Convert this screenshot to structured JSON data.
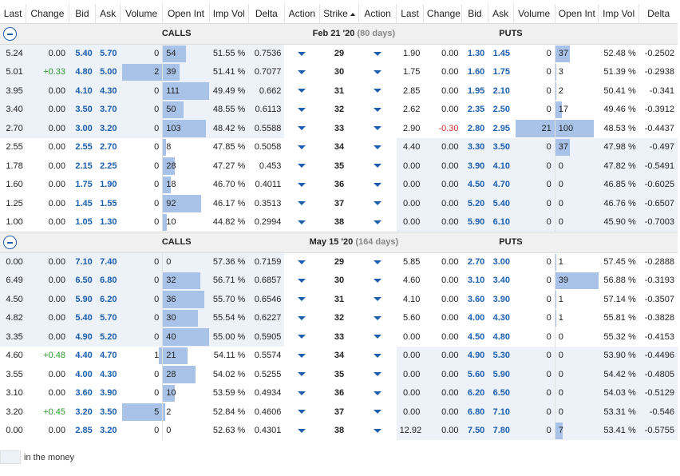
{
  "headers": {
    "last": "Last",
    "change": "Change",
    "bid": "Bid",
    "ask": "Ask",
    "volume": "Volume",
    "open_int": "Open Int",
    "imp_vol": "Imp Vol",
    "delta": "Delta",
    "action": "Action",
    "strike": "Strike",
    "action2": "Action",
    "last2": "Last",
    "change2": "Change",
    "bid2": "Bid",
    "ask2": "Ask",
    "volume2": "Volume",
    "open_int2": "Open Int",
    "imp_vol2": "Imp Vol",
    "delta2": "Delta"
  },
  "legend_label": "in the money",
  "sections": [
    {
      "calls_label": "CALLS",
      "date": "Feb 21 '20",
      "days": "(80 days)",
      "puts_label": "PUTS",
      "rows": [
        {
          "strike": "29",
          "call": {
            "last": "5.24",
            "change": "0.00",
            "bid": "5.40",
            "ask": "5.70",
            "volume": "0",
            "oi": "54",
            "iv": "51.55 %",
            "delta": "0.7536",
            "vol_frac": 0,
            "oi_frac": 0.49,
            "itm": true
          },
          "put": {
            "last": "1.90",
            "change": "0.00",
            "bid": "1.30",
            "ask": "1.45",
            "volume": "0",
            "oi": "37",
            "iv": "52.48 %",
            "delta": "-0.2502",
            "vol_frac": 0,
            "oi_frac": 0.33,
            "itm": false
          }
        },
        {
          "strike": "30",
          "call": {
            "last": "5.01",
            "change": "+0.33",
            "bid": "4.80",
            "ask": "5.00",
            "volume": "2",
            "oi": "39",
            "iv": "51.41 %",
            "delta": "0.7077",
            "vol_frac": 0.95,
            "oi_frac": 0.35,
            "itm": true
          },
          "put": {
            "last": "1.75",
            "change": "0.00",
            "bid": "1.60",
            "ask": "1.75",
            "volume": "0",
            "oi": "3",
            "iv": "51.39 %",
            "delta": "-0.2938",
            "vol_frac": 0,
            "oi_frac": 0.03,
            "itm": false
          }
        },
        {
          "strike": "31",
          "call": {
            "last": "3.95",
            "change": "0.00",
            "bid": "4.10",
            "ask": "4.30",
            "volume": "0",
            "oi": "111",
            "iv": "49.49 %",
            "delta": "0.662",
            "vol_frac": 0,
            "oi_frac": 1.0,
            "itm": true
          },
          "put": {
            "last": "2.85",
            "change": "0.00",
            "bid": "1.95",
            "ask": "2.10",
            "volume": "0",
            "oi": "2",
            "iv": "50.41 %",
            "delta": "-0.341",
            "vol_frac": 0,
            "oi_frac": 0.02,
            "itm": false
          }
        },
        {
          "strike": "32",
          "call": {
            "last": "3.40",
            "change": "0.00",
            "bid": "3.50",
            "ask": "3.70",
            "volume": "0",
            "oi": "50",
            "iv": "48.55 %",
            "delta": "0.6113",
            "vol_frac": 0,
            "oi_frac": 0.45,
            "itm": true
          },
          "put": {
            "last": "2.62",
            "change": "0.00",
            "bid": "2.35",
            "ask": "2.50",
            "volume": "0",
            "oi": "17",
            "iv": "49.46 %",
            "delta": "-0.3912",
            "vol_frac": 0,
            "oi_frac": 0.15,
            "itm": false
          }
        },
        {
          "strike": "33",
          "call": {
            "last": "2.70",
            "change": "0.00",
            "bid": "3.00",
            "ask": "3.20",
            "volume": "0",
            "oi": "103",
            "iv": "48.42 %",
            "delta": "0.5588",
            "vol_frac": 0,
            "oi_frac": 0.93,
            "itm": true
          },
          "put": {
            "last": "2.90",
            "change": "-0.30",
            "bid": "2.80",
            "ask": "2.95",
            "volume": "21",
            "oi": "100",
            "iv": "48.53 %",
            "delta": "-0.4437",
            "vol_frac": 0.95,
            "oi_frac": 0.9,
            "itm": false
          }
        },
        {
          "strike": "34",
          "call": {
            "last": "2.55",
            "change": "0.00",
            "bid": "2.55",
            "ask": "2.70",
            "volume": "0",
            "oi": "8",
            "iv": "47.85 %",
            "delta": "0.5058",
            "vol_frac": 0,
            "oi_frac": 0.07,
            "itm": false
          },
          "put": {
            "last": "4.40",
            "change": "0.00",
            "bid": "3.30",
            "ask": "3.50",
            "volume": "0",
            "oi": "37",
            "iv": "47.98 %",
            "delta": "-0.497",
            "vol_frac": 0,
            "oi_frac": 0.33,
            "itm": true
          }
        },
        {
          "strike": "35",
          "call": {
            "last": "1.78",
            "change": "0.00",
            "bid": "2.15",
            "ask": "2.25",
            "volume": "0",
            "oi": "28",
            "iv": "47.27 %",
            "delta": "0.453",
            "vol_frac": 0,
            "oi_frac": 0.25,
            "itm": false
          },
          "put": {
            "last": "0.00",
            "change": "0.00",
            "bid": "3.90",
            "ask": "4.10",
            "volume": "0",
            "oi": "0",
            "iv": "47.82 %",
            "delta": "-0.5491",
            "vol_frac": 0,
            "oi_frac": 0,
            "itm": true
          }
        },
        {
          "strike": "36",
          "call": {
            "last": "1.60",
            "change": "0.00",
            "bid": "1.75",
            "ask": "1.90",
            "volume": "0",
            "oi": "18",
            "iv": "46.70 %",
            "delta": "0.4011",
            "vol_frac": 0,
            "oi_frac": 0.16,
            "itm": false
          },
          "put": {
            "last": "0.00",
            "change": "0.00",
            "bid": "4.50",
            "ask": "4.70",
            "volume": "0",
            "oi": "0",
            "iv": "46.85 %",
            "delta": "-0.6025",
            "vol_frac": 0,
            "oi_frac": 0,
            "itm": true
          }
        },
        {
          "strike": "37",
          "call": {
            "last": "1.25",
            "change": "0.00",
            "bid": "1.45",
            "ask": "1.55",
            "volume": "0",
            "oi": "92",
            "iv": "46.17 %",
            "delta": "0.3513",
            "vol_frac": 0,
            "oi_frac": 0.83,
            "itm": false
          },
          "put": {
            "last": "0.00",
            "change": "0.00",
            "bid": "5.20",
            "ask": "5.40",
            "volume": "0",
            "oi": "0",
            "iv": "46.76 %",
            "delta": "-0.6507",
            "vol_frac": 0,
            "oi_frac": 0,
            "itm": true
          }
        },
        {
          "strike": "38",
          "call": {
            "last": "1.00",
            "change": "0.00",
            "bid": "1.05",
            "ask": "1.30",
            "volume": "0",
            "oi": "10",
            "iv": "44.82 %",
            "delta": "0.2994",
            "vol_frac": 0,
            "oi_frac": 0.09,
            "itm": false
          },
          "put": {
            "last": "0.00",
            "change": "0.00",
            "bid": "5.90",
            "ask": "6.10",
            "volume": "0",
            "oi": "0",
            "iv": "45.90 %",
            "delta": "-0.7003",
            "vol_frac": 0,
            "oi_frac": 0,
            "itm": true
          }
        }
      ]
    },
    {
      "calls_label": "CALLS",
      "date": "May 15 '20",
      "days": "(164 days)",
      "puts_label": "PUTS",
      "rows": [
        {
          "strike": "29",
          "call": {
            "last": "0.00",
            "change": "0.00",
            "bid": "7.10",
            "ask": "7.40",
            "volume": "0",
            "oi": "0",
            "iv": "57.36 %",
            "delta": "0.7159",
            "vol_frac": 0,
            "oi_frac": 0,
            "itm": true
          },
          "put": {
            "last": "5.85",
            "change": "0.00",
            "bid": "2.70",
            "ask": "3.00",
            "volume": "0",
            "oi": "1",
            "iv": "57.45 %",
            "delta": "-0.2888",
            "vol_frac": 0,
            "oi_frac": 0.03,
            "itm": false
          }
        },
        {
          "strike": "30",
          "call": {
            "last": "6.49",
            "change": "0.00",
            "bid": "6.50",
            "ask": "6.80",
            "volume": "0",
            "oi": "32",
            "iv": "56.71 %",
            "delta": "0.6857",
            "vol_frac": 0,
            "oi_frac": 0.8,
            "itm": true
          },
          "put": {
            "last": "4.60",
            "change": "0.00",
            "bid": "3.10",
            "ask": "3.40",
            "volume": "0",
            "oi": "39",
            "iv": "56.88 %",
            "delta": "-0.3193",
            "vol_frac": 0,
            "oi_frac": 1.0,
            "itm": false
          }
        },
        {
          "strike": "31",
          "call": {
            "last": "4.50",
            "change": "0.00",
            "bid": "5.90",
            "ask": "6.20",
            "volume": "0",
            "oi": "36",
            "iv": "55.70 %",
            "delta": "0.6546",
            "vol_frac": 0,
            "oi_frac": 0.9,
            "itm": true
          },
          "put": {
            "last": "4.10",
            "change": "0.00",
            "bid": "3.60",
            "ask": "3.90",
            "volume": "0",
            "oi": "1",
            "iv": "57.14 %",
            "delta": "-0.3507",
            "vol_frac": 0,
            "oi_frac": 0.03,
            "itm": false
          }
        },
        {
          "strike": "32",
          "call": {
            "last": "4.82",
            "change": "0.00",
            "bid": "5.40",
            "ask": "5.70",
            "volume": "0",
            "oi": "30",
            "iv": "55.54 %",
            "delta": "0.6227",
            "vol_frac": 0,
            "oi_frac": 0.75,
            "itm": true
          },
          "put": {
            "last": "5.60",
            "change": "0.00",
            "bid": "4.00",
            "ask": "4.30",
            "volume": "0",
            "oi": "1",
            "iv": "55.81 %",
            "delta": "-0.3828",
            "vol_frac": 0,
            "oi_frac": 0.03,
            "itm": false
          }
        },
        {
          "strike": "33",
          "call": {
            "last": "3.35",
            "change": "0.00",
            "bid": "4.90",
            "ask": "5.20",
            "volume": "0",
            "oi": "40",
            "iv": "55.00 %",
            "delta": "0.5905",
            "vol_frac": 0,
            "oi_frac": 1.0,
            "itm": true
          },
          "put": {
            "last": "0.00",
            "change": "0.00",
            "bid": "4.50",
            "ask": "4.80",
            "volume": "0",
            "oi": "0",
            "iv": "55.32 %",
            "delta": "-0.4153",
            "vol_frac": 0,
            "oi_frac": 0,
            "itm": false
          }
        },
        {
          "strike": "34",
          "call": {
            "last": "4.60",
            "change": "+0.48",
            "bid": "4.40",
            "ask": "4.70",
            "volume": "1",
            "oi": "21",
            "iv": "54.11 %",
            "delta": "0.5574",
            "vol_frac": 0.08,
            "oi_frac": 0.53,
            "itm": false
          },
          "put": {
            "last": "0.00",
            "change": "0.00",
            "bid": "4.90",
            "ask": "5.30",
            "volume": "0",
            "oi": "0",
            "iv": "53.90 %",
            "delta": "-0.4496",
            "vol_frac": 0,
            "oi_frac": 0,
            "itm": true
          }
        },
        {
          "strike": "35",
          "call": {
            "last": "3.55",
            "change": "0.00",
            "bid": "4.00",
            "ask": "4.30",
            "volume": "0",
            "oi": "28",
            "iv": "54.02 %",
            "delta": "0.5255",
            "vol_frac": 0,
            "oi_frac": 0.7,
            "itm": false
          },
          "put": {
            "last": "0.00",
            "change": "0.00",
            "bid": "5.60",
            "ask": "5.90",
            "volume": "0",
            "oi": "0",
            "iv": "54.42 %",
            "delta": "-0.4805",
            "vol_frac": 0,
            "oi_frac": 0,
            "itm": true
          }
        },
        {
          "strike": "36",
          "call": {
            "last": "3.10",
            "change": "0.00",
            "bid": "3.60",
            "ask": "3.90",
            "volume": "0",
            "oi": "10",
            "iv": "53.59 %",
            "delta": "0.4934",
            "vol_frac": 0,
            "oi_frac": 0.25,
            "itm": false
          },
          "put": {
            "last": "0.00",
            "change": "0.00",
            "bid": "6.20",
            "ask": "6.50",
            "volume": "0",
            "oi": "0",
            "iv": "54.03 %",
            "delta": "-0.5129",
            "vol_frac": 0,
            "oi_frac": 0,
            "itm": true
          }
        },
        {
          "strike": "37",
          "call": {
            "last": "3.20",
            "change": "+0.45",
            "bid": "3.20",
            "ask": "3.50",
            "volume": "5",
            "oi": "2",
            "iv": "52.84 %",
            "delta": "0.4606",
            "vol_frac": 0.95,
            "oi_frac": 0.05,
            "itm": false
          },
          "put": {
            "last": "0.00",
            "change": "0.00",
            "bid": "6.80",
            "ask": "7.10",
            "volume": "0",
            "oi": "0",
            "iv": "53.31 %",
            "delta": "-0.546",
            "vol_frac": 0,
            "oi_frac": 0,
            "itm": true
          }
        },
        {
          "strike": "38",
          "call": {
            "last": "0.00",
            "change": "0.00",
            "bid": "2.85",
            "ask": "3.20",
            "volume": "0",
            "oi": "0",
            "iv": "52.63 %",
            "delta": "0.4301",
            "vol_frac": 0,
            "oi_frac": 0,
            "itm": false
          },
          "put": {
            "last": "12.92",
            "change": "0.00",
            "bid": "7.50",
            "ask": "7.80",
            "volume": "0",
            "oi": "7",
            "iv": "53.41 %",
            "delta": "-0.5755",
            "vol_frac": 0,
            "oi_frac": 0.18,
            "itm": true
          }
        }
      ]
    }
  ]
}
